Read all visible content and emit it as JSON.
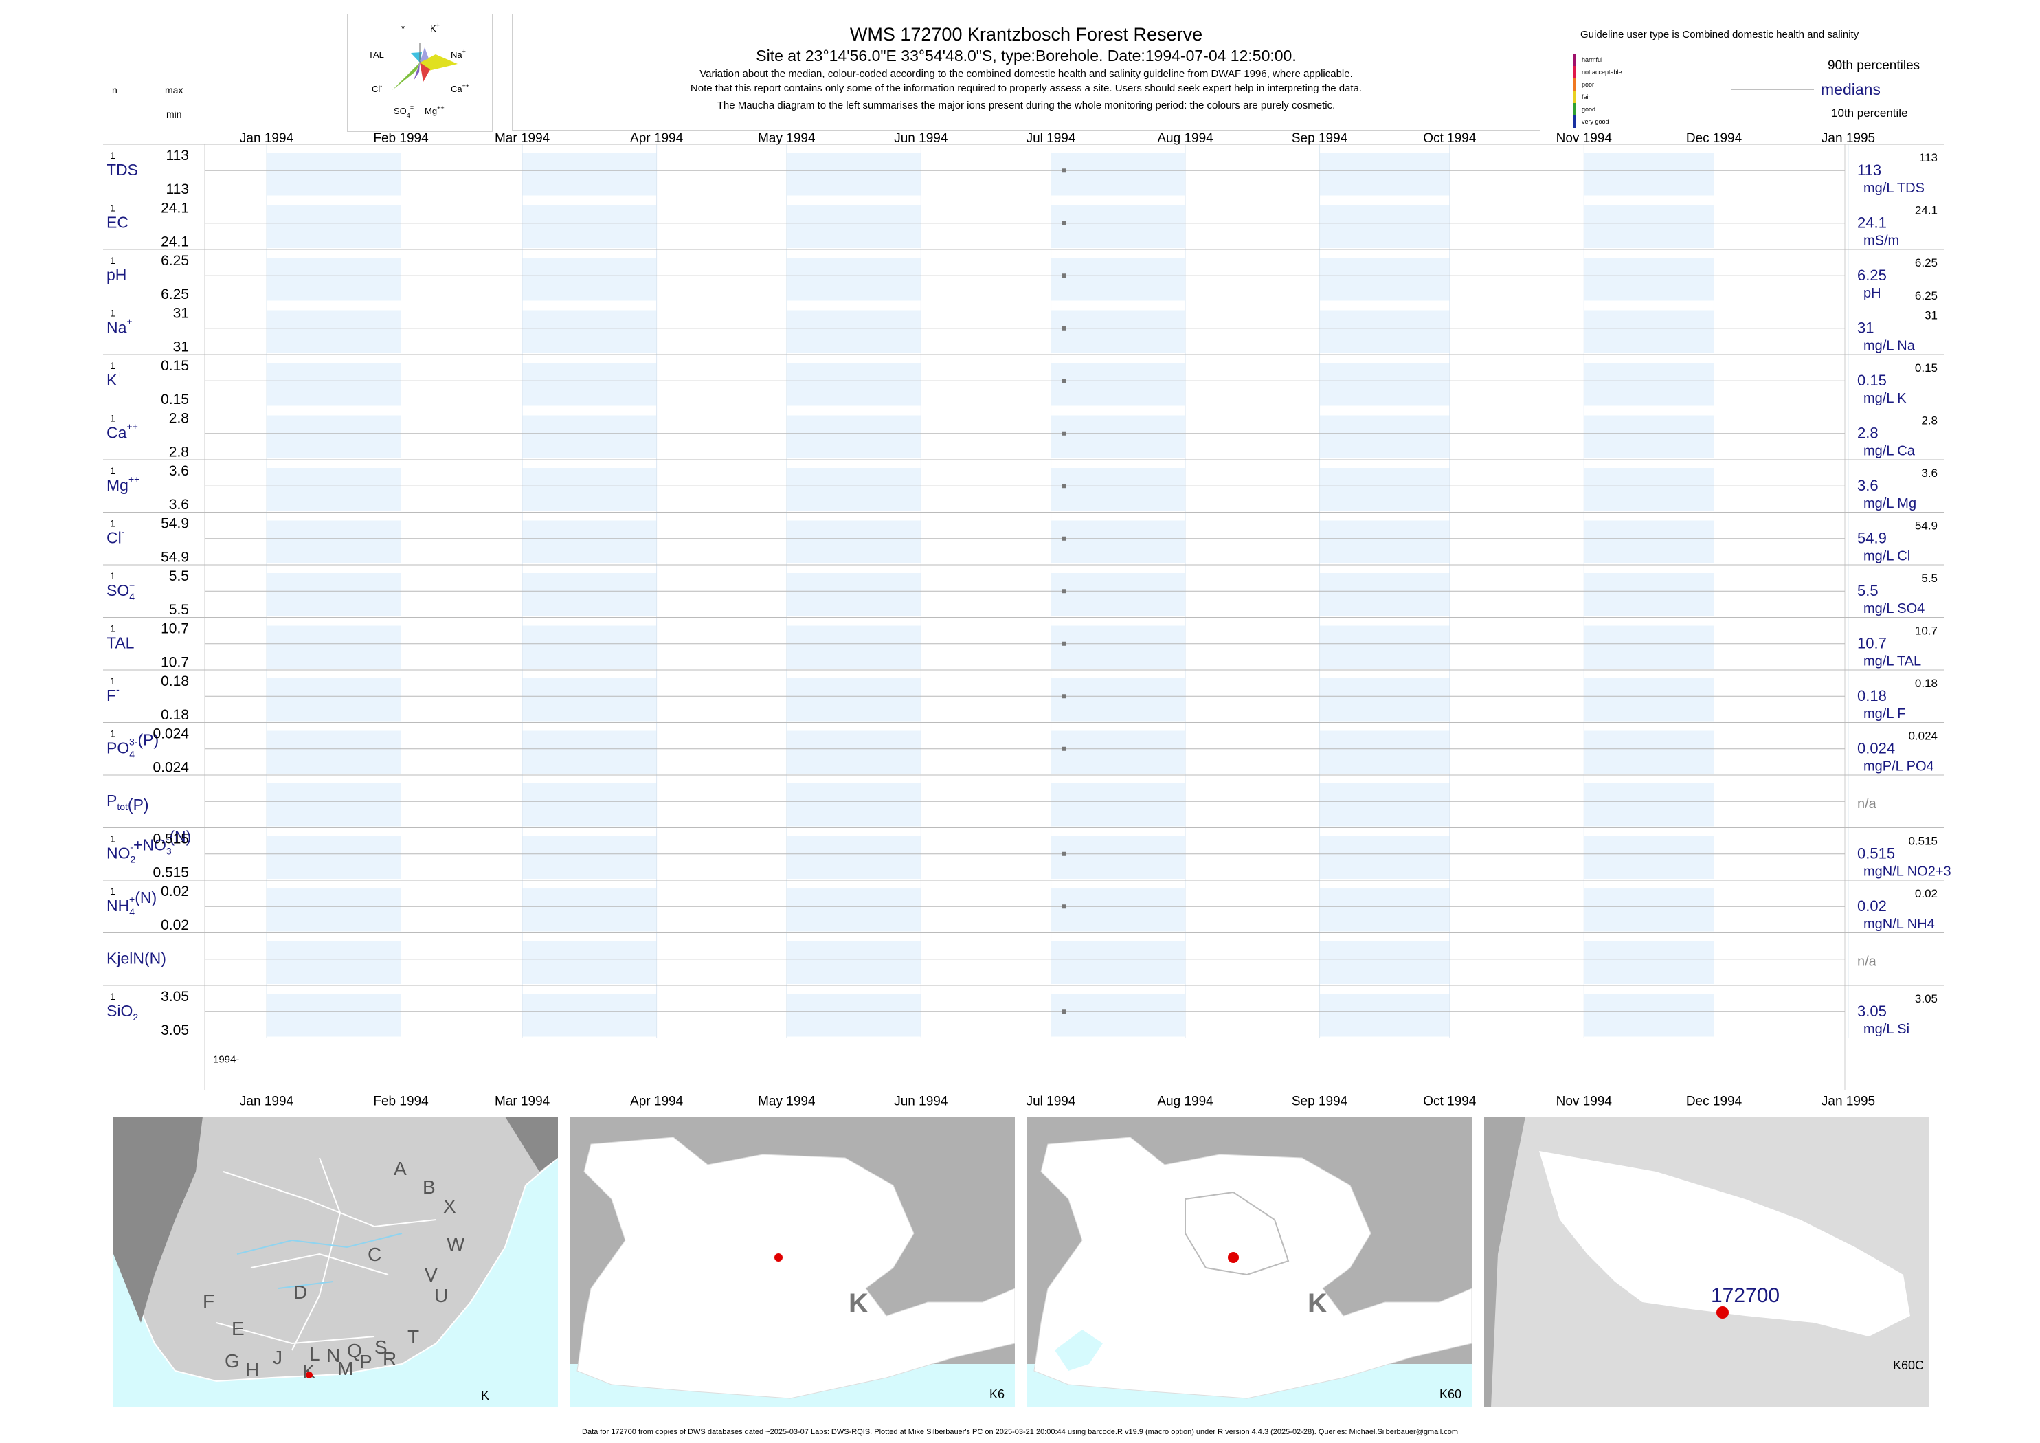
{
  "header": {
    "title": "WMS 172700  Krantzbosch Forest Reserve",
    "subtitle": "Site at 23°14'56.0\"E 33°54'48.0\"S, type:Borehole. Date:1994-07-04 12:50:00.",
    "note1": "Variation about the median,  colour-coded according to the combined domestic health and salinity guideline from DWAF 1996, where applicable.",
    "note2": "Note that this report contains only some of the information required to properly assess a site. Users should seek expert help in interpreting the data.",
    "note3": "The Maucha diagram to the left summarises the major ions present during the whole monitoring period: the colours are purely cosmetic."
  },
  "maucha": {
    "labels": {
      "star": "*",
      "k": "K",
      "tal": "TAL",
      "na": "Na",
      "cl": "Cl",
      "ca": "Ca",
      "so4": "SO",
      "mg": "Mg"
    }
  },
  "left_head": {
    "n": "n",
    "max": "max",
    "min": "min"
  },
  "legend": {
    "guideline": "Guideline user type is Combined domestic health and salinity",
    "categories": [
      {
        "label": "harmful",
        "color": "#a0106a"
      },
      {
        "label": "not acceptable",
        "color": "#e0184a"
      },
      {
        "label": "poor",
        "color": "#f07820"
      },
      {
        "label": "fair",
        "color": "#e8d020"
      },
      {
        "label": "good",
        "color": "#30a030"
      },
      {
        "label": "very good",
        "color": "#1830a0"
      }
    ],
    "p90": "90th percentiles",
    "medians": "medians",
    "p10": "10th percentile"
  },
  "chart_data": {
    "type": "scatter",
    "x_ticks": [
      "Jan 1994",
      "Feb 1994",
      "Mar 1994",
      "Apr 1994",
      "May 1994",
      "Jun 1994",
      "Jul 1994",
      "Aug 1994",
      "Sep 1994",
      "Oct 1994",
      "Nov 1994",
      "Dec 1994",
      "Jan 1995"
    ],
    "xlim": [
      "1994-01-01",
      "1995-01-01"
    ],
    "year_label": "1994-",
    "sample_date": "1994-07-04",
    "series": [
      {
        "name": "TDS",
        "n": "1",
        "max": "113",
        "min": "113",
        "median": "113",
        "unit": "mg/L TDS",
        "p90": "113",
        "value": 113
      },
      {
        "name": "EC",
        "n": "1",
        "max": "24.1",
        "min": "24.1",
        "median": "24.1",
        "unit": "mS/m",
        "p90": "24.1",
        "value": 24.1
      },
      {
        "name": "pH",
        "n": "1",
        "max": "6.25",
        "min": "6.25",
        "median": "6.25",
        "unit": "pH",
        "p90": "6.25",
        "p10": "6.25",
        "value": 6.25
      },
      {
        "name": "Na",
        "sup": "+",
        "n": "1",
        "max": "31",
        "min": "31",
        "median": "31",
        "unit": "mg/L Na",
        "p90": "31",
        "value": 31
      },
      {
        "name": "K",
        "sup": "+",
        "n": "1",
        "max": "0.15",
        "min": "0.15",
        "median": "0.15",
        "unit": "mg/L K",
        "p90": "0.15",
        "value": 0.15
      },
      {
        "name": "Ca",
        "sup": "++",
        "n": "1",
        "max": "2.8",
        "min": "2.8",
        "median": "2.8",
        "unit": "mg/L Ca",
        "p90": "2.8",
        "value": 2.8
      },
      {
        "name": "Mg",
        "sup": "++",
        "n": "1",
        "max": "3.6",
        "min": "3.6",
        "median": "3.6",
        "unit": "mg/L Mg",
        "p90": "3.6",
        "value": 3.6
      },
      {
        "name": "Cl",
        "sup": "-",
        "n": "1",
        "max": "54.9",
        "min": "54.9",
        "median": "54.9",
        "unit": "mg/L Cl",
        "p90": "54.9",
        "value": 54.9
      },
      {
        "name": "SO",
        "sub": "4",
        "sup": "=",
        "n": "1",
        "max": "5.5",
        "min": "5.5",
        "median": "5.5",
        "unit": "mg/L SO4",
        "p90": "5.5",
        "value": 5.5
      },
      {
        "name": "TAL",
        "n": "1",
        "max": "10.7",
        "min": "10.7",
        "median": "10.7",
        "unit": "mg/L TAL",
        "p90": "10.7",
        "value": 10.7
      },
      {
        "name": "F",
        "sup": "-",
        "n": "1",
        "max": "0.18",
        "min": "0.18",
        "median": "0.18",
        "unit": "mg/L F",
        "p90": "0.18",
        "value": 0.18
      },
      {
        "name": "PO",
        "sub": "4",
        "sup": "3-",
        "tail": "(P)",
        "n": "1",
        "max": "0.024",
        "min": "0.024",
        "median": "0.024",
        "unit": "mgP/L PO4",
        "p90": "0.024",
        "value": 0.024
      },
      {
        "name": "P",
        "sub": "tot",
        "tail": "(P)",
        "na": "n/a"
      },
      {
        "name": "NO",
        "sub": "2",
        "sup": "-",
        "tail": "+NO",
        "sub2": "3",
        "sup2": "-",
        "tail2": "(N)",
        "n": "1",
        "max": "0.515",
        "min": "0.515",
        "median": "0.515",
        "unit": "mgN/L NO2+3",
        "p90": "0.515",
        "value": 0.515
      },
      {
        "name": "NH",
        "sub": "4",
        "sup": "+",
        "tail": "(N)",
        "n": "1",
        "max": "0.02",
        "min": "0.02",
        "median": "0.02",
        "unit": "mgN/L NH4",
        "p90": "0.02",
        "value": 0.02
      },
      {
        "name": "KjelN(N)",
        "na": "n/a"
      },
      {
        "name": "SiO",
        "sub": "2",
        "n": "1",
        "max": "3.05",
        "min": "3.05",
        "median": "3.05",
        "unit": "mg/L Si",
        "p90": "3.05",
        "value": 3.05
      }
    ]
  },
  "maps": [
    {
      "label": "K",
      "regions": [
        "A",
        "B",
        "X",
        "W",
        "C",
        "V",
        "D",
        "U",
        "F",
        "T",
        "E",
        "S",
        "L",
        "N",
        "Q",
        "R",
        "G",
        "H",
        "J",
        "K",
        "M",
        "P"
      ]
    },
    {
      "label": "K6",
      "big": "K"
    },
    {
      "label": "K60",
      "big": "K"
    },
    {
      "label": "K60C",
      "site": "172700"
    }
  ],
  "footer": "Data for 172700 from copies of DWS databases dated ~2025-03-07 Labs: DWS-RQIS. Plotted at Mike Silberbauer's PC on 2025-03-21 20:00:44 using barcode.R v19.9 (macro option) under R version 4.4.3 (2025-02-28). Queries: Michael.Silberbauer@gmail.com"
}
